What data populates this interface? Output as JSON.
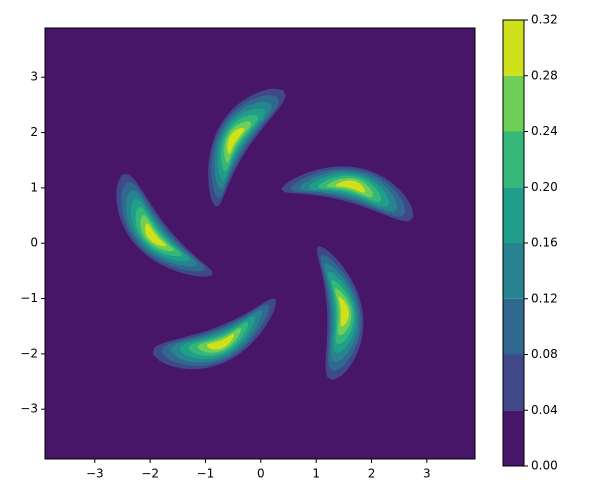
{
  "chart_data": {
    "type": "contourf",
    "xlim": [
      -3.9,
      3.87
    ],
    "ylim": [
      -3.9,
      3.89
    ],
    "xticks": [
      {
        "value": -3,
        "label": "−3"
      },
      {
        "value": -2,
        "label": "−2"
      },
      {
        "value": -1,
        "label": "−1"
      },
      0,
      1,
      2,
      3
    ],
    "yticks": [
      {
        "value": -3,
        "label": "−3"
      },
      {
        "value": -2,
        "label": "−2"
      },
      {
        "value": -1,
        "label": "−1"
      },
      0,
      1,
      2,
      3
    ],
    "levels": [
      {
        "value": 0,
        "label": "0.00"
      },
      {
        "value": 0.04,
        "label": "0.04"
      },
      {
        "value": 0.08,
        "label": "0.08"
      },
      {
        "value": 0.12,
        "label": "0.12"
      },
      {
        "value": 0.16,
        "label": "0.16"
      },
      {
        "value": 0.2,
        "label": "0.20"
      },
      {
        "value": 0.24,
        "label": "0.24"
      },
      {
        "value": 0.28,
        "label": "0.28"
      },
      {
        "value": 0.32,
        "label": "0.32"
      }
    ],
    "colors": [
      "#471668",
      "#3f4889",
      "#31688e",
      "#26838f",
      "#1f9e89",
      "#35b779",
      "#6ece58",
      "#d0e11c"
    ]
  }
}
